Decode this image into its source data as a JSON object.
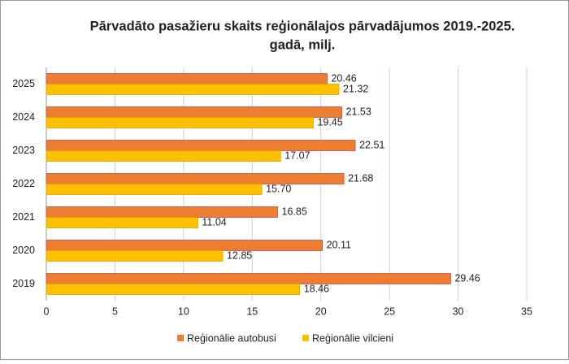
{
  "chart_data": {
    "type": "hbar",
    "title": [
      "Pārvadāto pasažieru skaits reģionālajos pārvadājumos 2019.-2025.",
      "gadā, milj."
    ],
    "categories": [
      "2019",
      "2020",
      "2021",
      "2022",
      "2023",
      "2024",
      "2025"
    ],
    "series": [
      {
        "name": "Reģionālie autobusi",
        "color": "#ED7D31",
        "values": [
          29.46,
          20.11,
          16.85,
          21.68,
          22.51,
          21.53,
          20.46
        ],
        "value_labels": [
          "29.46",
          "20.11",
          "16.85",
          "21.68",
          "22.51",
          "21.53",
          "20.46"
        ]
      },
      {
        "name": "Reģionālie vilcieni",
        "color": "#FFC000",
        "values": [
          18.46,
          12.85,
          11.04,
          15.7,
          17.07,
          19.45,
          21.32
        ],
        "value_labels": [
          "18.46",
          "12.85",
          "11.04",
          "15.70",
          "17.07",
          "19.45",
          "21.32"
        ]
      }
    ],
    "xlim": [
      0,
      35
    ],
    "xticks": [
      0,
      5,
      10,
      15,
      20,
      25,
      30,
      35
    ],
    "grid": true,
    "legend": "bottom"
  }
}
